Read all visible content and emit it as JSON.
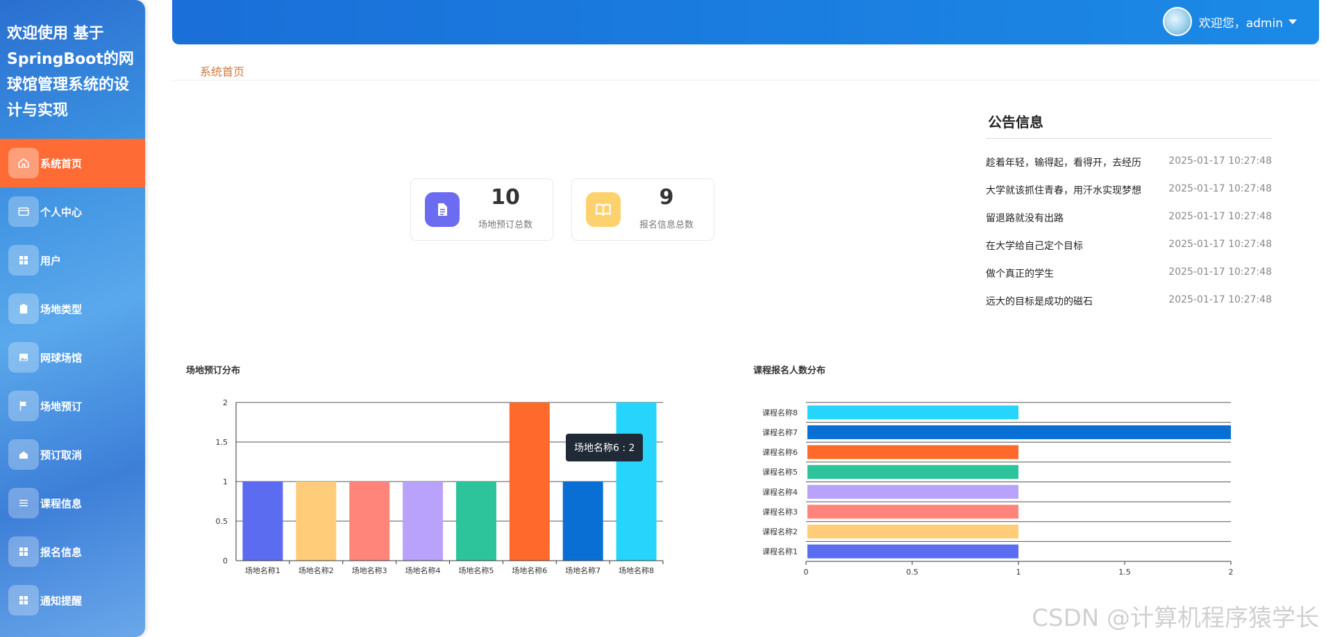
{
  "app": {
    "title": "欢迎使用 基于SpringBoot的网球馆管理系统的设计与实现"
  },
  "header": {
    "welcome": "欢迎您，admin"
  },
  "breadcrumb": "系统首页",
  "sidebar": {
    "items": [
      {
        "label": "系统首页",
        "icon": "home-icon",
        "active": true
      },
      {
        "label": "个人中心",
        "icon": "card-icon"
      },
      {
        "label": "用户",
        "icon": "grid-icon"
      },
      {
        "label": "场地类型",
        "icon": "clipboard-icon"
      },
      {
        "label": "网球场馆",
        "icon": "image-icon"
      },
      {
        "label": "场地预订",
        "icon": "flag-icon"
      },
      {
        "label": "预订取消",
        "icon": "cancel-icon"
      },
      {
        "label": "课程信息",
        "icon": "list-icon"
      },
      {
        "label": "报名信息",
        "icon": "grid-icon"
      },
      {
        "label": "通知提醒",
        "icon": "grid-icon"
      }
    ]
  },
  "stats": [
    {
      "value": "10",
      "label": "场地预订总数",
      "color": "#6c6cf0",
      "icon": "document-icon"
    },
    {
      "value": "9",
      "label": "报名信息总数",
      "color": "#fdd26e",
      "icon": "book-icon"
    }
  ],
  "notice": {
    "title": "公告信息",
    "items": [
      {
        "text": "趁着年轻，输得起，看得开，去经历",
        "time": "2025-01-17 10:27:48"
      },
      {
        "text": "大学就该抓住青春，用汗水实现梦想",
        "time": "2025-01-17 10:27:48"
      },
      {
        "text": "留退路就没有出路",
        "time": "2025-01-17 10:27:48"
      },
      {
        "text": "在大学给自己定个目标",
        "time": "2025-01-17 10:27:48"
      },
      {
        "text": "做个真正的学生",
        "time": "2025-01-17 10:27:48"
      },
      {
        "text": "远大的目标是成功的磁石",
        "time": "2025-01-17 10:27:48"
      }
    ]
  },
  "tooltip": "场地名称6 : 2",
  "watermark": "CSDN @计算机程序猿学长",
  "chart_data": [
    {
      "type": "bar",
      "title": "场地预订分布",
      "categories": [
        "场地名称1",
        "场地名称2",
        "场地名称3",
        "场地名称4",
        "场地名称5",
        "场地名称6",
        "场地名称7",
        "场地名称8"
      ],
      "values": [
        1,
        1,
        1,
        1,
        1,
        2,
        1,
        2
      ],
      "colors": [
        "#5b6cf0",
        "#ffcc7a",
        "#ff857a",
        "#b9a2fb",
        "#2ec49b",
        "#ff6a2c",
        "#0a6fd4",
        "#27d4fb"
      ],
      "ylim": [
        0,
        2
      ],
      "yticks": [
        "0",
        "0.5",
        "1",
        "1.5",
        "2"
      ]
    },
    {
      "type": "bar",
      "orientation": "horizontal",
      "title": "课程报名人数分布",
      "categories": [
        "课程名称1",
        "课程名称2",
        "课程名称3",
        "课程名称4",
        "课程名称5",
        "课程名称6",
        "课程名称7",
        "课程名称8"
      ],
      "values": [
        1,
        1,
        1,
        1,
        1,
        1,
        2,
        1
      ],
      "colors": [
        "#5b6cf0",
        "#ffcc7a",
        "#ff857a",
        "#b9a2fb",
        "#2ec49b",
        "#ff6a2c",
        "#0a6fd4",
        "#27d4fb"
      ],
      "xlim": [
        0,
        2
      ],
      "xticks": [
        "0",
        "0.5",
        "1",
        "1.5",
        "2"
      ]
    }
  ]
}
